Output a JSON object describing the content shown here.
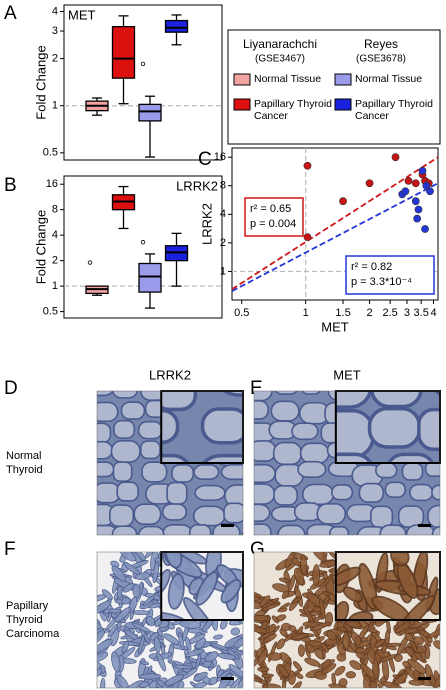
{
  "chart_data": [
    {
      "type": "box",
      "panel": "A",
      "title": "MET",
      "ylabel": "Fold Change",
      "log_scale": true,
      "ylim": [
        0.45,
        4.4
      ],
      "yticks": [
        0.5,
        1,
        2,
        3,
        4
      ],
      "reference_line": 1,
      "boxes": [
        {
          "min": 0.87,
          "q1": 0.93,
          "median": 1.0,
          "q3": 1.07,
          "max": 1.12,
          "outliers": []
        },
        {
          "min": 1.03,
          "q1": 1.5,
          "median": 2.0,
          "q3": 3.2,
          "max": 3.75,
          "outliers": []
        },
        {
          "min": 0.47,
          "q1": 0.8,
          "median": 0.92,
          "q3": 1.02,
          "max": 1.15,
          "outliers": [
            1.85
          ]
        },
        {
          "min": 2.45,
          "q1": 2.95,
          "median": 3.15,
          "q3": 3.5,
          "max": 3.8,
          "outliers": []
        }
      ]
    },
    {
      "type": "box",
      "panel": "B",
      "title": "LRRK2",
      "ylabel": "Fold Change",
      "log_scale": true,
      "ylim": [
        0.42,
        20
      ],
      "yticks": [
        0.5,
        1,
        2,
        4,
        8,
        16
      ],
      "reference_line": 1,
      "boxes": [
        {
          "min": 0.78,
          "q1": 0.82,
          "median": 0.92,
          "q3": 1.0,
          "max": 1.0,
          "outliers": [
            1.9
          ]
        },
        {
          "min": 4.8,
          "q1": 8.0,
          "median": 10,
          "q3": 12,
          "max": 15,
          "outliers": []
        },
        {
          "min": 0.55,
          "q1": 0.85,
          "median": 1.3,
          "q3": 1.85,
          "max": 2.4,
          "outliers": [
            3.3
          ]
        },
        {
          "min": 1.0,
          "q1": 2.0,
          "median": 2.5,
          "q3": 3.0,
          "max": 4.2,
          "outliers": []
        }
      ]
    },
    {
      "type": "scatter",
      "panel": "C",
      "xlabel": "MET",
      "ylabel": "LRRK2",
      "log_x": true,
      "log_y": true,
      "xlim": [
        0.45,
        4.2
      ],
      "xticks": [
        0.5,
        1,
        1.5,
        2,
        2.5,
        3,
        3.5,
        4
      ],
      "ylim": [
        0.5,
        20
      ],
      "yticks": [
        1,
        2,
        4,
        8,
        16
      ],
      "reference_lines": {
        "x": 1,
        "y": 1
      },
      "series": [
        {
          "color": "#c81414",
          "x": [
            1.02,
            1.02,
            1.5,
            2.0,
            2.65,
            3.05,
            3.3,
            3.55,
            3.65,
            3.8
          ],
          "y": [
            13,
            2.3,
            5.5,
            8.5,
            16,
            9,
            8.5,
            10.5,
            9,
            8.5
          ]
        },
        {
          "color": "#2435d6",
          "x": [
            2.85,
            2.95,
            3.3,
            3.35,
            3.4,
            3.55,
            3.65,
            3.7,
            3.85
          ],
          "y": [
            6.5,
            7,
            5.5,
            3.6,
            4.5,
            11.5,
            2.8,
            8,
            7
          ]
        }
      ],
      "fits": [
        {
          "color": "#d01818",
          "x": [
            0.45,
            4.2
          ],
          "y": [
            0.65,
            16
          ],
          "annotation": [
            "r² = 0.65",
            "p = 0.004"
          ]
        },
        {
          "color": "#2435d6",
          "x": [
            0.45,
            4.2
          ],
          "y": [
            0.62,
            8.5
          ],
          "annotation": [
            "r² = 0.82",
            "p = 3.3*10⁻⁴"
          ]
        }
      ]
    }
  ],
  "legend": {
    "groups": [
      {
        "name": "Liyanarachchi",
        "dataset": "(GSE3467)",
        "entries": [
          {
            "name": "Normal Tissue",
            "color": "#f4a3a3"
          },
          {
            "name": "Papillary Thyroid Cancer",
            "color": "#dd1010"
          }
        ]
      },
      {
        "name": "Reyes",
        "dataset": "(GSE3678)",
        "entries": [
          {
            "name": "Normal Tissue",
            "color": "#9b9bec"
          },
          {
            "name": "Papillary Thyroid Cancer",
            "color": "#1a22dd"
          }
        ]
      }
    ]
  },
  "histology": {
    "columns": [
      "LRRK2",
      "MET"
    ],
    "rows": [
      "Normal Thyroid",
      "Papillary Thyroid Carcinoma"
    ],
    "panels": [
      "D",
      "E",
      "F",
      "G"
    ]
  }
}
